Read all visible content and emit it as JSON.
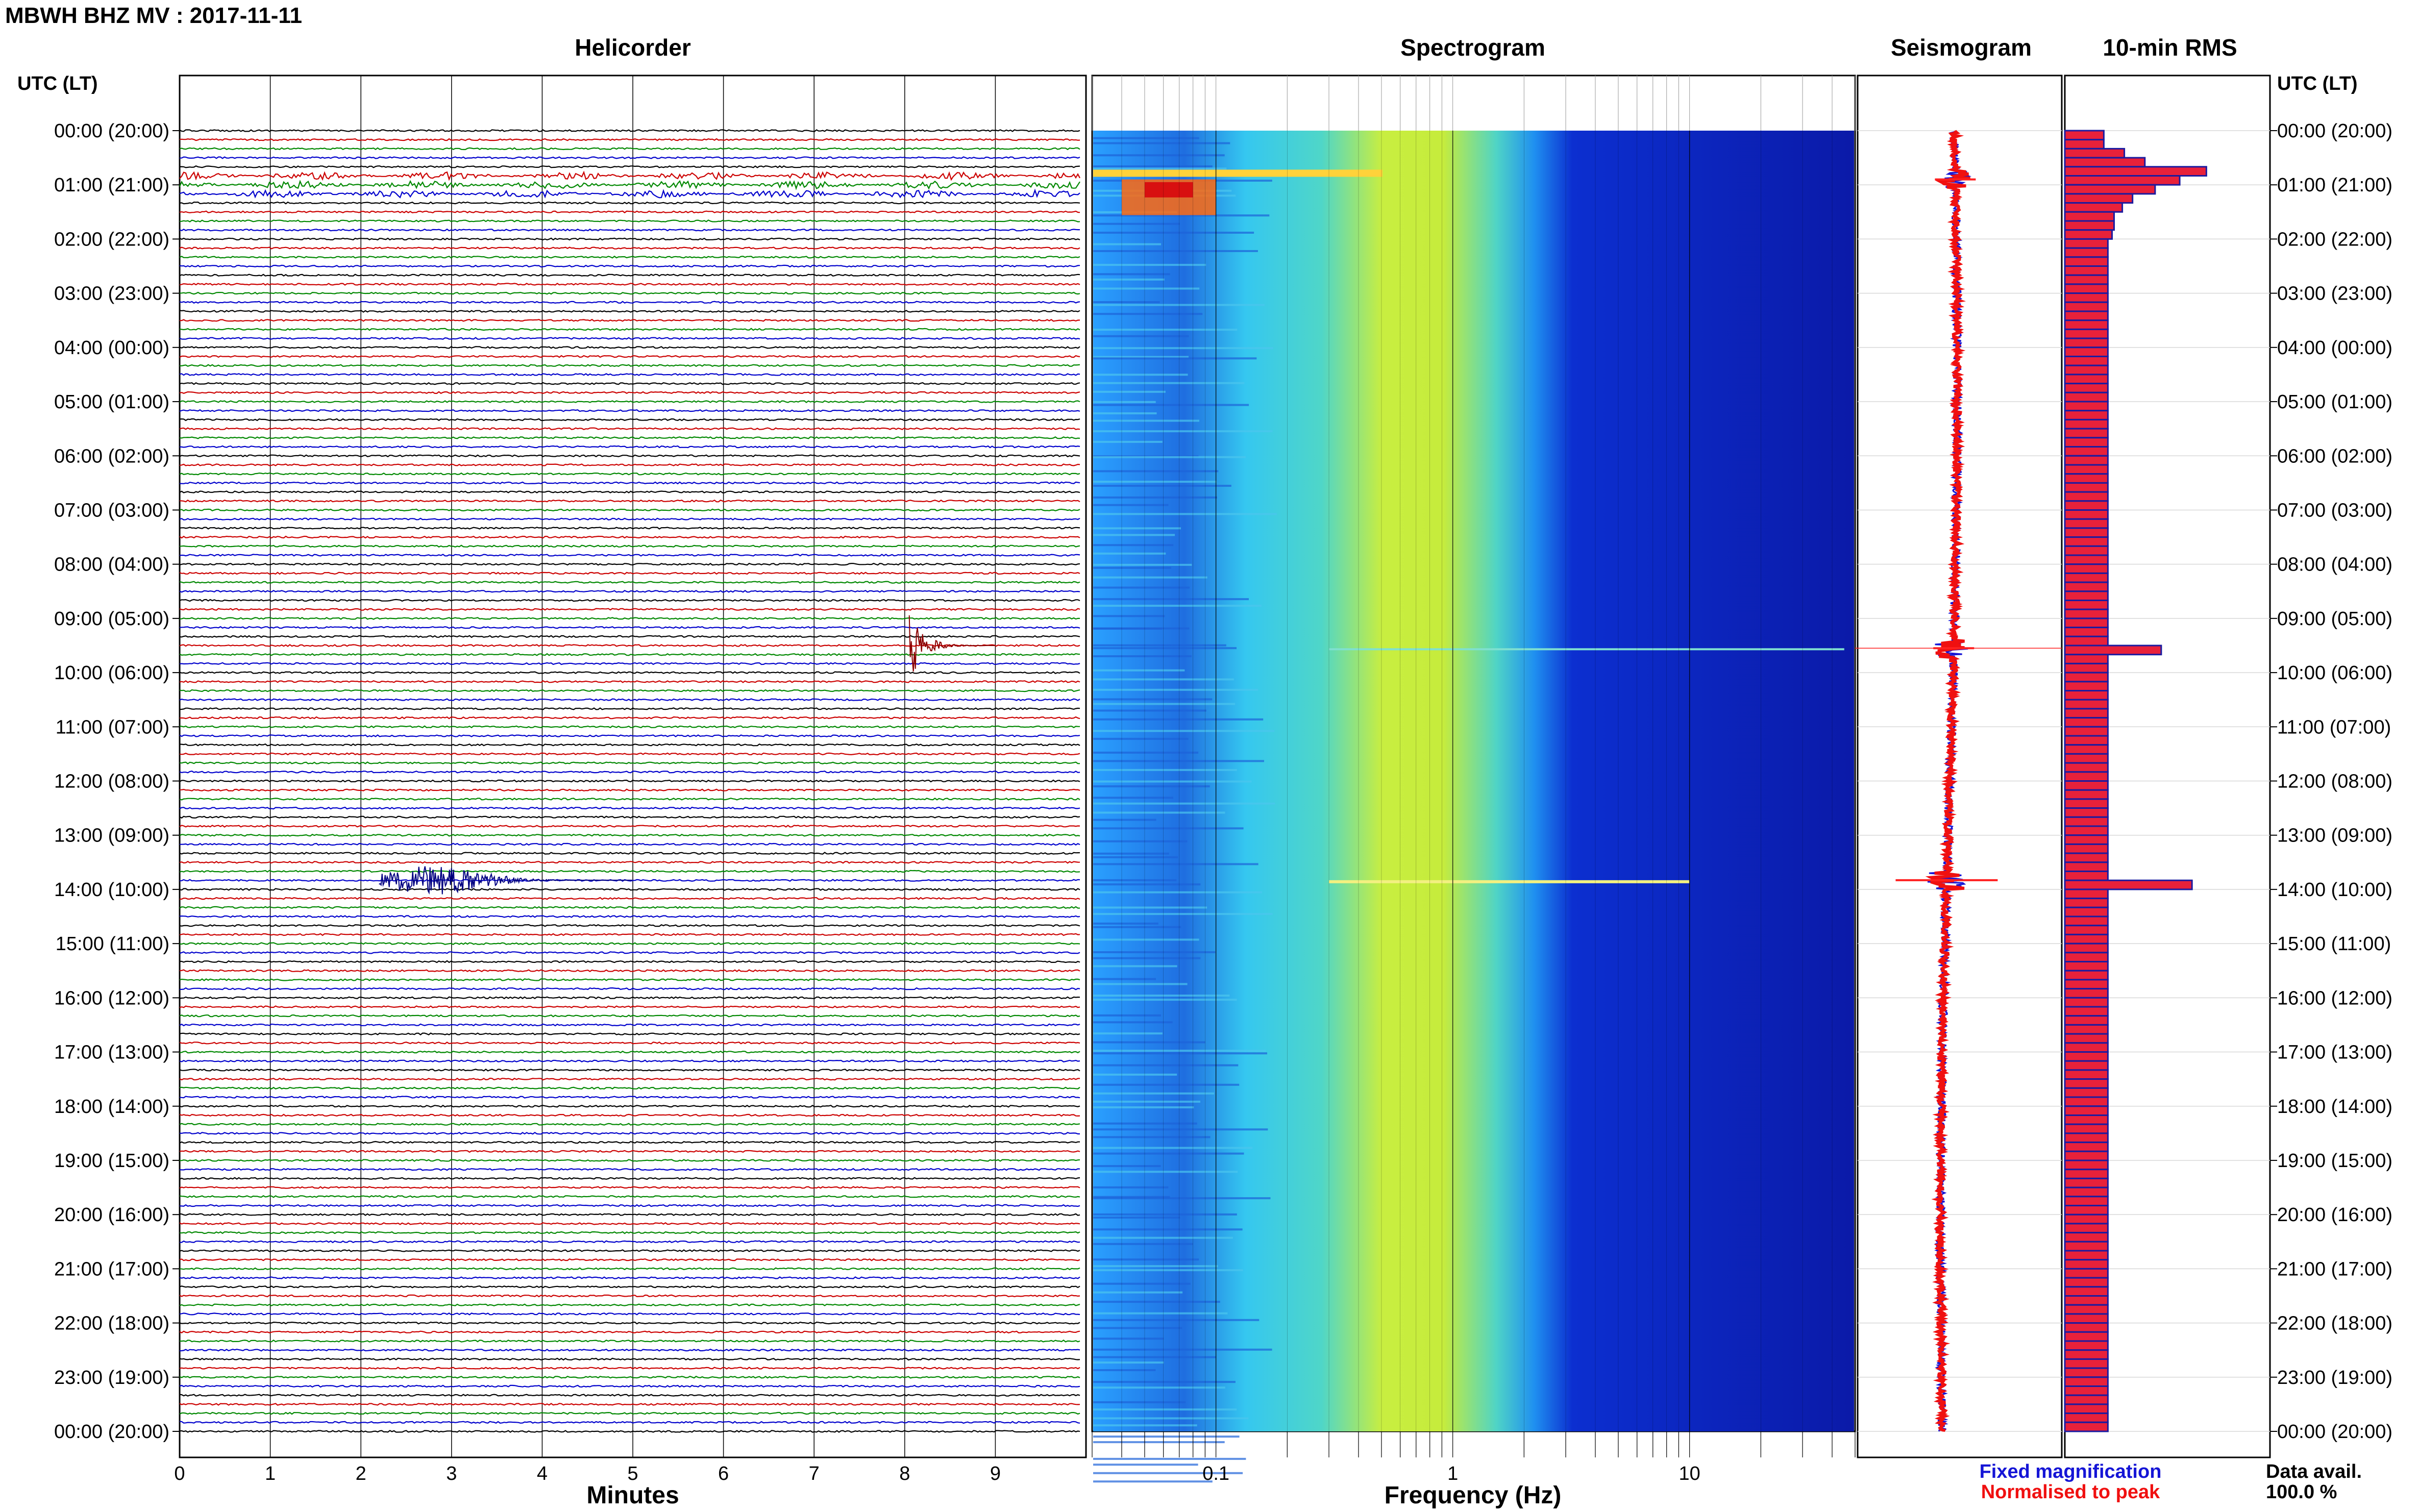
{
  "header": {
    "title": "MBWH BHZ MV : 2017-11-11",
    "utc_label_left": "UTC (LT)",
    "utc_label_right": "UTC (LT)"
  },
  "panels": {
    "helicorder": "Helicorder",
    "spectrogram": "Spectrogram",
    "seismogram": "Seismogram",
    "rms": "10-min RMS"
  },
  "x_labels": {
    "helicorder": "Minutes",
    "spectrogram": "Frequency (Hz)"
  },
  "legend": {
    "fixed": "Fixed magnification",
    "normalised": "Normalised to peak"
  },
  "data_avail": {
    "label": "Data avail.",
    "value": "100.0 %"
  },
  "colors": {
    "trace_cycle": [
      "#000000",
      "#cc0000",
      "#008800",
      "#0000cc"
    ],
    "event_red": "#8b0000",
    "event_blue": "#000080",
    "rms_fill": "#e8213a",
    "rms_edge": "#1b1ba0",
    "legend_fixed": "#1515d6",
    "legend_normalised": "#f01010",
    "spectrogram_low": "#0a1fb8",
    "spectrogram_high": "#ff3a00"
  },
  "chart_data": [
    {
      "type": "helicorder",
      "title": "Helicorder",
      "xlabel": "Minutes",
      "x_ticks": [
        0,
        1,
        2,
        3,
        4,
        5,
        6,
        7,
        8,
        9
      ],
      "xlim": [
        0,
        10
      ],
      "lines_per_hour": 6,
      "y_tick_labels": [
        "00:00 (20:00)",
        "01:00 (21:00)",
        "02:00 (22:00)",
        "03:00 (23:00)",
        "04:00 (00:00)",
        "05:00 (01:00)",
        "06:00 (02:00)",
        "07:00 (03:00)",
        "08:00 (04:00)",
        "09:00 (05:00)",
        "10:00 (06:00)",
        "11:00 (07:00)",
        "12:00 (08:00)",
        "13:00 (09:00)",
        "14:00 (10:00)",
        "15:00 (11:00)",
        "16:00 (12:00)",
        "17:00 (13:00)",
        "18:00 (14:00)",
        "19:00 (15:00)",
        "20:00 (16:00)",
        "21:00 (17:00)",
        "22:00 (18:00)",
        "23:00 (19:00)",
        "00:00 (20:00)"
      ],
      "events": [
        {
          "hour": 9.5,
          "minute_start": 8.05,
          "minute_end": 9.0
        },
        {
          "hour": 13.83,
          "minute_start": 2.2,
          "minute_end": 5.0
        }
      ]
    },
    {
      "type": "heatmap",
      "title": "Spectrogram",
      "xlabel": "Frequency (Hz)",
      "x_scale": "log",
      "xlim": [
        0.03,
        50
      ],
      "x_ticks": [
        0.1,
        1,
        10
      ],
      "x_tick_labels": [
        "0.1",
        "1",
        "10"
      ]
    },
    {
      "type": "line",
      "title": "Seismogram",
      "spike_hours": [
        0.9,
        9.55,
        13.83
      ]
    },
    {
      "type": "bar",
      "title": "10-min RMS",
      "orientation": "horizontal",
      "bins_per_hour": 6,
      "values": [
        0.19,
        0.19,
        0.29,
        0.39,
        0.69,
        0.56,
        0.44,
        0.33,
        0.28,
        0.24,
        0.24,
        0.23,
        0.21,
        0.21,
        0.21,
        0.21,
        0.21,
        0.21,
        0.21,
        0.21,
        0.21,
        0.21,
        0.21,
        0.21,
        0.21,
        0.21,
        0.21,
        0.21,
        0.21,
        0.21,
        0.21,
        0.21,
        0.21,
        0.21,
        0.21,
        0.21,
        0.21,
        0.21,
        0.21,
        0.21,
        0.21,
        0.21,
        0.21,
        0.21,
        0.21,
        0.21,
        0.21,
        0.21,
        0.21,
        0.21,
        0.21,
        0.21,
        0.21,
        0.21,
        0.21,
        0.21,
        0.21,
        0.47,
        0.21,
        0.21,
        0.21,
        0.21,
        0.21,
        0.21,
        0.21,
        0.21,
        0.21,
        0.21,
        0.21,
        0.21,
        0.21,
        0.21,
        0.21,
        0.21,
        0.21,
        0.21,
        0.21,
        0.21,
        0.21,
        0.21,
        0.21,
        0.21,
        0.21,
        0.62,
        0.21,
        0.21,
        0.21,
        0.21,
        0.21,
        0.21,
        0.21,
        0.21,
        0.21,
        0.21,
        0.21,
        0.21,
        0.21,
        0.21,
        0.21,
        0.21,
        0.21,
        0.21,
        0.21,
        0.21,
        0.21,
        0.21,
        0.21,
        0.21,
        0.21,
        0.21,
        0.21,
        0.21,
        0.21,
        0.21,
        0.21,
        0.21,
        0.21,
        0.21,
        0.21,
        0.21,
        0.21,
        0.21,
        0.21,
        0.21,
        0.21,
        0.21,
        0.21,
        0.21,
        0.21,
        0.21,
        0.21,
        0.21,
        0.21,
        0.21,
        0.21,
        0.21,
        0.21,
        0.21,
        0.21,
        0.21,
        0.21,
        0.21,
        0.21,
        0.21
      ]
    }
  ]
}
